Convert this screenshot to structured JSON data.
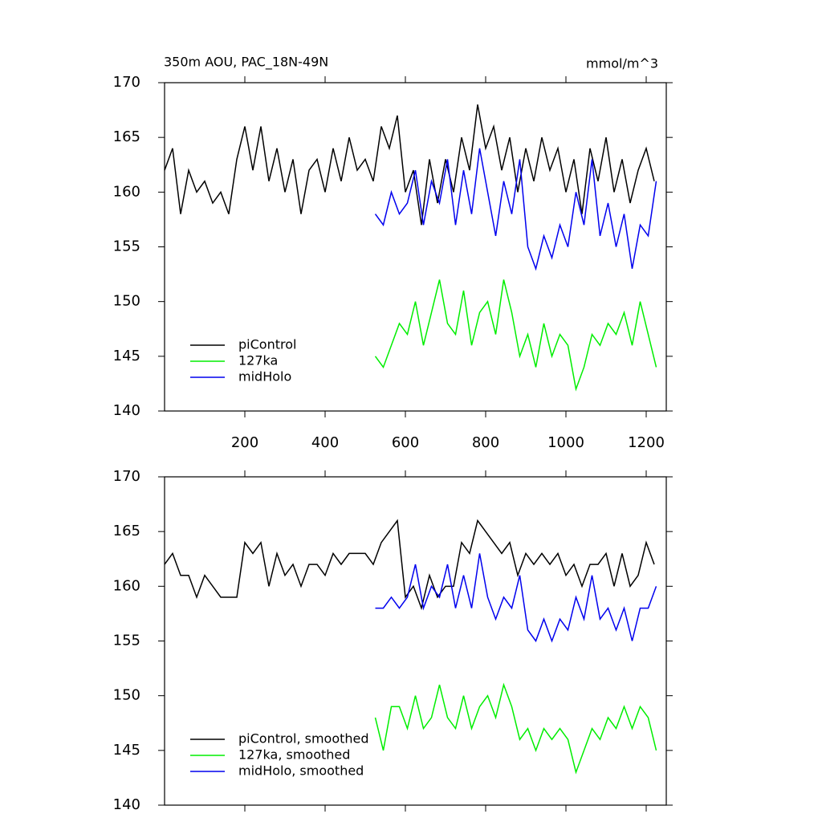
{
  "chart_data": [
    {
      "type": "line",
      "title": "350m AOU, PAC_18N-49N",
      "units": "mmol/m^3",
      "xlim": [
        0,
        1250
      ],
      "ylim": [
        140,
        170
      ],
      "xticks": [
        200,
        400,
        600,
        800,
        1000,
        1200
      ],
      "yticks": [
        140,
        145,
        150,
        155,
        160,
        165,
        170
      ],
      "show_xtick_labels": true,
      "legend": "lower left",
      "series": [
        {
          "name": "piControl",
          "color": "#000000",
          "x": [
            0,
            20,
            40,
            60,
            80,
            100,
            120,
            140,
            160,
            180,
            200,
            220,
            240,
            260,
            280,
            300,
            320,
            340,
            360,
            380,
            400,
            420,
            440,
            460,
            480,
            500,
            520,
            540,
            560,
            580,
            600,
            620,
            640,
            660,
            680,
            700,
            720,
            740,
            760,
            780,
            800,
            820,
            840,
            860,
            880,
            900,
            920,
            940,
            960,
            980,
            1000,
            1020,
            1040,
            1060,
            1080,
            1100,
            1120,
            1140,
            1160,
            1180,
            1200,
            1220
          ],
          "values": [
            162,
            164,
            158,
            162,
            160,
            161,
            159,
            160,
            158,
            163,
            166,
            162,
            166,
            161,
            164,
            160,
            163,
            158,
            162,
            163,
            160,
            164,
            161,
            165,
            162,
            163,
            161,
            166,
            164,
            167,
            160,
            162,
            157,
            163,
            159,
            163,
            160,
            165,
            162,
            168,
            164,
            166,
            162,
            165,
            160,
            164,
            161,
            165,
            162,
            164,
            160,
            163,
            158,
            164,
            161,
            165,
            160,
            163,
            159,
            162,
            164,
            161
          ]
        },
        {
          "name": "127ka",
          "color": "#00ee00",
          "x": [
            525,
            545,
            565,
            585,
            605,
            625,
            645,
            665,
            685,
            705,
            725,
            745,
            765,
            785,
            805,
            825,
            845,
            865,
            885,
            905,
            925,
            945,
            965,
            985,
            1005,
            1025,
            1045,
            1065,
            1085,
            1105,
            1125,
            1145,
            1165,
            1185,
            1205,
            1225
          ],
          "values": [
            145,
            144,
            146,
            148,
            147,
            150,
            146,
            149,
            152,
            148,
            147,
            151,
            146,
            149,
            150,
            147,
            152,
            149,
            145,
            147,
            144,
            148,
            145,
            147,
            146,
            142,
            144,
            147,
            146,
            148,
            147,
            149,
            146,
            150,
            147,
            144
          ]
        },
        {
          "name": "midHolo",
          "color": "#0000ee",
          "x": [
            525,
            545,
            565,
            585,
            605,
            625,
            645,
            665,
            685,
            705,
            725,
            745,
            765,
            785,
            805,
            825,
            845,
            865,
            885,
            905,
            925,
            945,
            965,
            985,
            1005,
            1025,
            1045,
            1065,
            1085,
            1105,
            1125,
            1145,
            1165,
            1185,
            1205,
            1225
          ],
          "values": [
            158,
            157,
            160,
            158,
            159,
            162,
            157,
            161,
            159,
            163,
            157,
            162,
            158,
            164,
            160,
            156,
            161,
            158,
            163,
            155,
            153,
            156,
            154,
            157,
            155,
            160,
            157,
            163,
            156,
            159,
            155,
            158,
            153,
            157,
            156,
            161
          ]
        }
      ]
    },
    {
      "type": "line",
      "xlim": [
        0,
        1250
      ],
      "ylim": [
        140,
        170
      ],
      "xticks": [
        200,
        400,
        600,
        800,
        1000,
        1200
      ],
      "yticks": [
        140,
        145,
        150,
        155,
        160,
        165,
        170
      ],
      "show_xtick_labels": false,
      "legend": "lower left",
      "series": [
        {
          "name": "piControl, smoothed",
          "color": "#000000",
          "x": [
            0,
            20,
            40,
            60,
            80,
            100,
            120,
            140,
            160,
            180,
            200,
            220,
            240,
            260,
            280,
            300,
            320,
            340,
            360,
            380,
            400,
            420,
            440,
            460,
            480,
            500,
            520,
            540,
            560,
            580,
            600,
            620,
            640,
            660,
            680,
            700,
            720,
            740,
            760,
            780,
            800,
            820,
            840,
            860,
            880,
            900,
            920,
            940,
            960,
            980,
            1000,
            1020,
            1040,
            1060,
            1080,
            1100,
            1120,
            1140,
            1160,
            1180,
            1200,
            1220
          ],
          "values": [
            162,
            163,
            161,
            161,
            159,
            161,
            160,
            159,
            159,
            159,
            164,
            163,
            164,
            160,
            163,
            161,
            162,
            160,
            162,
            162,
            161,
            163,
            162,
            163,
            163,
            163,
            162,
            164,
            165,
            166,
            159,
            160,
            158,
            161,
            159,
            160,
            160,
            164,
            163,
            166,
            165,
            164,
            163,
            164,
            161,
            163,
            162,
            163,
            162,
            163,
            161,
            162,
            160,
            162,
            162,
            163,
            160,
            163,
            160,
            161,
            164,
            162
          ]
        },
        {
          "name": "127ka, smoothed",
          "color": "#00ee00",
          "x": [
            525,
            545,
            565,
            585,
            605,
            625,
            645,
            665,
            685,
            705,
            725,
            745,
            765,
            785,
            805,
            825,
            845,
            865,
            885,
            905,
            925,
            945,
            965,
            985,
            1005,
            1025,
            1045,
            1065,
            1085,
            1105,
            1125,
            1145,
            1165,
            1185,
            1205,
            1225
          ],
          "values": [
            148,
            145,
            149,
            149,
            147,
            150,
            147,
            148,
            151,
            148,
            147,
            150,
            147,
            149,
            150,
            148,
            151,
            149,
            146,
            147,
            145,
            147,
            146,
            147,
            146,
            143,
            145,
            147,
            146,
            148,
            147,
            149,
            147,
            149,
            148,
            145
          ]
        },
        {
          "name": "midHolo, smoothed",
          "color": "#0000ee",
          "x": [
            525,
            545,
            565,
            585,
            605,
            625,
            645,
            665,
            685,
            705,
            725,
            745,
            765,
            785,
            805,
            825,
            845,
            865,
            885,
            905,
            925,
            945,
            965,
            985,
            1005,
            1025,
            1045,
            1065,
            1085,
            1105,
            1125,
            1145,
            1165,
            1185,
            1205,
            1225
          ],
          "values": [
            158,
            158,
            159,
            158,
            159,
            162,
            158,
            160,
            159,
            162,
            158,
            161,
            158,
            163,
            159,
            157,
            159,
            158,
            161,
            156,
            155,
            157,
            155,
            157,
            156,
            159,
            157,
            161,
            157,
            158,
            156,
            158,
            155,
            158,
            158,
            160
          ]
        }
      ]
    }
  ]
}
